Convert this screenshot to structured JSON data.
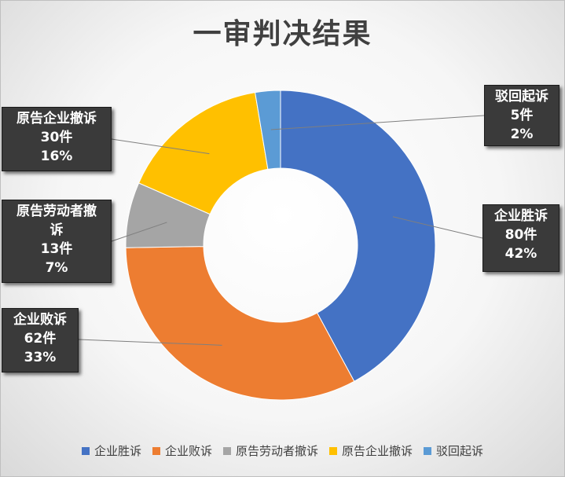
{
  "chart_data": {
    "type": "pie",
    "title": "一审判决结果",
    "donut": true,
    "slices": [
      {
        "name": "企业胜诉",
        "value": 80,
        "percent": "42%",
        "color": "#4472c4"
      },
      {
        "name": "企业败诉",
        "value": 62,
        "percent": "33%",
        "color": "#ed7d31"
      },
      {
        "name": "原告劳动者撤诉",
        "value": 13,
        "percent": "7%",
        "color": "#a5a5a5"
      },
      {
        "name": "原告企业撤诉",
        "value": 30,
        "percent": "16%",
        "color": "#ffc000"
      },
      {
        "name": "驳回起诉",
        "value": 5,
        "percent": "2%",
        "color": "#5b9bd5"
      }
    ],
    "legend_position": "bottom"
  },
  "labels": {
    "win": {
      "name": "企业胜诉",
      "count": "80件",
      "percent": "42%"
    },
    "lose": {
      "name": "企业败诉",
      "count": "62件",
      "percent": "33%"
    },
    "worker": {
      "name_line1": "原告劳动者撤",
      "name_line2": "诉",
      "count": "13件",
      "percent": "7%"
    },
    "company": {
      "name": "原告企业撤诉",
      "count": "30件",
      "percent": "16%"
    },
    "dismiss": {
      "name": "驳回起诉",
      "count": "5件",
      "percent": "2%"
    }
  },
  "legend": [
    "企业胜诉",
    "企业败诉",
    "原告劳动者撤诉",
    "原告企业撤诉",
    "驳回起诉"
  ]
}
